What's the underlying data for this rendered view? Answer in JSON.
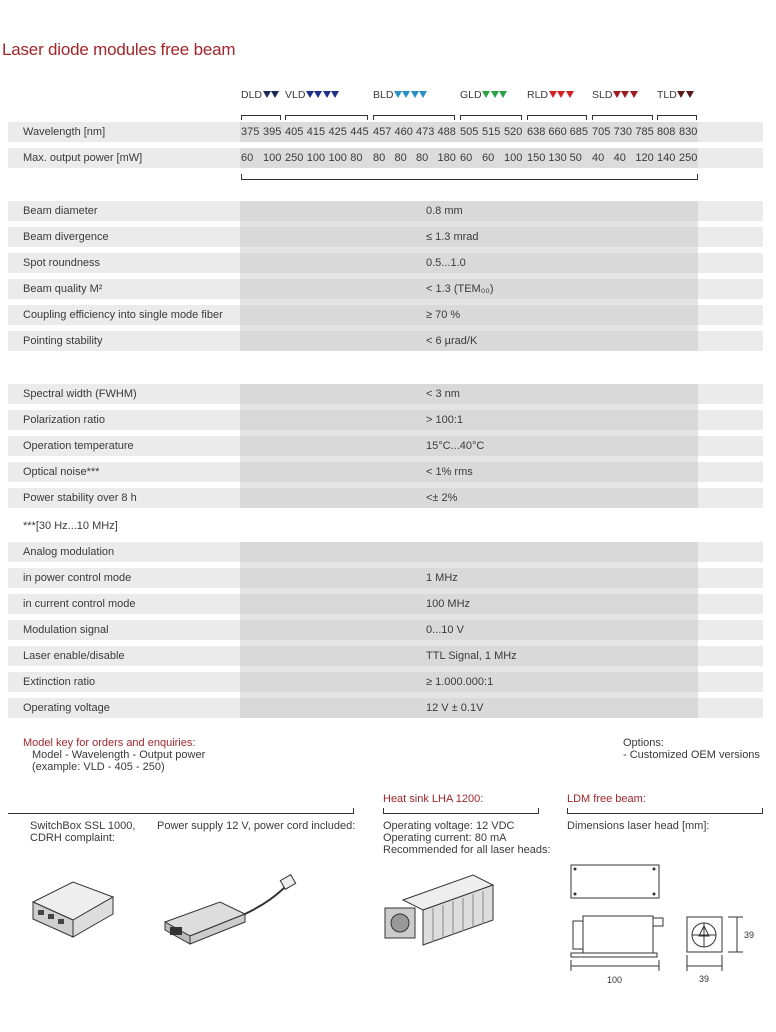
{
  "title": "Laser diode modules free beam",
  "families": [
    {
      "name": "DLD",
      "color": "#1b2a55",
      "triangles": 2,
      "wavelengths": [
        "375",
        "395"
      ],
      "powers": [
        "60",
        "100"
      ]
    },
    {
      "name": "VLD",
      "color": "#1f2f8c",
      "triangles": 4,
      "wavelengths": [
        "405",
        "415",
        "425",
        "445"
      ],
      "powers": [
        "250",
        "100",
        "100",
        "80"
      ]
    },
    {
      "name": "BLD",
      "color": "#2a8ec6",
      "triangles": 4,
      "wavelengths": [
        "457",
        "460",
        "473",
        "488"
      ],
      "powers": [
        "80",
        "80",
        "80",
        "180"
      ]
    },
    {
      "name": "GLD",
      "color": "#2aa143",
      "triangles": 3,
      "wavelengths": [
        "505",
        "515",
        "520"
      ],
      "powers": [
        "60",
        "60",
        "100"
      ]
    },
    {
      "name": "RLD",
      "color": "#d71f26",
      "triangles": 3,
      "wavelengths": [
        "638",
        "660",
        "685"
      ],
      "powers": [
        "150",
        "130",
        "50"
      ]
    },
    {
      "name": "SLD",
      "color": "#9e1b22",
      "triangles": 3,
      "wavelengths": [
        "705",
        "730",
        "785"
      ],
      "powers": [
        "40",
        "40",
        "120"
      ]
    },
    {
      "name": "TLD",
      "color": "#5a1a1c",
      "triangles": 2,
      "wavelengths": [
        "808",
        "830"
      ],
      "powers": [
        "140",
        "250"
      ]
    }
  ],
  "spec_rows": {
    "wavelength": "Wavelength [nm]",
    "power": "Max. output power [mW]"
  },
  "beam": [
    {
      "label": "Beam diameter",
      "value": "0.8 mm"
    },
    {
      "label": "Beam divergence",
      "value": "≤ 1.3 mrad"
    },
    {
      "label": "Spot roundness",
      "value": "0.5...1.0"
    },
    {
      "label": "Beam quality M²",
      "value": "< 1.3 (TEM₀₀)"
    },
    {
      "label": "Coupling efficiency into single mode fiber",
      "value": "≥ 70 %"
    },
    {
      "label": "Pointing stability",
      "value": "< 6 µrad/K"
    }
  ],
  "spectral": [
    {
      "label": "Spectral width (FWHM)",
      "value": "< 3 nm"
    },
    {
      "label": "Polarization ratio",
      "value": "> 100:1"
    },
    {
      "label": "Operation temperature",
      "value": "15°C...40°C"
    },
    {
      "label": "Optical noise***",
      "value": "< 1% rms"
    },
    {
      "label": "Power stability over 8 h",
      "value": "<± 2%"
    }
  ],
  "footnote": "***[30 Hz...10 MHz]",
  "modulation": [
    {
      "label": "Analog modulation",
      "value": ""
    },
    {
      "label": "in power control mode",
      "value": "1 MHz"
    },
    {
      "label": "in current control mode",
      "value": "100 MHz"
    },
    {
      "label": "Modulation signal",
      "value": "0...10 V"
    },
    {
      "label": "Laser enable/disable",
      "value": "TTL Signal, 1 MHz"
    },
    {
      "label": "Extinction ratio",
      "value": "≥ 1.000.000:1"
    },
    {
      "label": "Operating voltage",
      "value": "12 V ± 0.1V"
    }
  ],
  "model_key": {
    "heading": "Model key for orders and enquiries:",
    "line1": "Model - Wavelength - Output power",
    "line2": "(example: VLD - 405 - 250)"
  },
  "options": {
    "heading": "Options:",
    "item": "- Customized  OEM versions"
  },
  "accessories": {
    "switchbox": {
      "line1": "SwitchBox SSL 1000,",
      "line2": "CDRH complaint:"
    },
    "power_supply": "Power supply 12 V, power cord included:",
    "heatsink": {
      "heading": "Heat sink LHA 1200:",
      "line1": "Operating voltage: 12 VDC",
      "line2": "Operating current: 80 mA",
      "line3": "Recommended for all laser heads:"
    },
    "ldm": {
      "heading": "LDM free beam:",
      "line1": "Dimensions laser head [mm]:",
      "dim_length": "100",
      "dim_width": "39",
      "dim_height": "39"
    }
  }
}
